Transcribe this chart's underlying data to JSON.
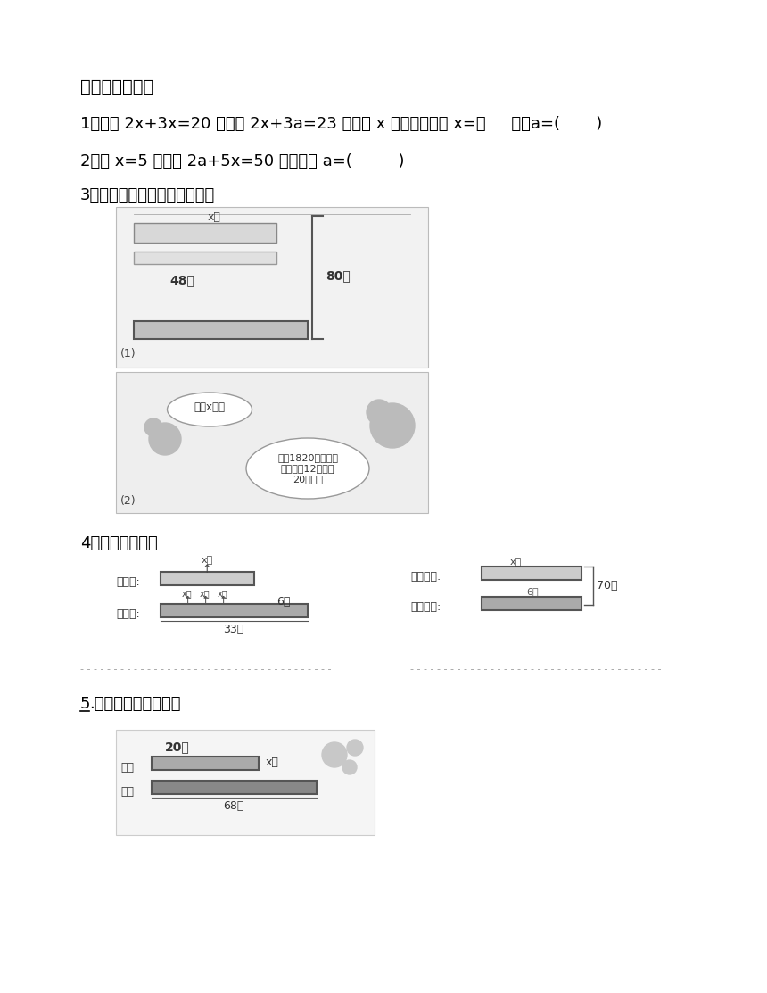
{
  "title": "考点四：解方程",
  "q1": "1、方程 2x+3x=20 与方程 2x+3a=23 求得的 x 的值相等。则 x=（     ）；a=(       )",
  "q2": "2、若 x=5 是方程 2a+5x=50 的解，则 a=(         )",
  "q3": "3、列方程，并求出方程的解。",
  "q4": "4、看图列方程。",
  "q5_num": "5",
  "q5_rest": ".看图列方程并解答。",
  "bg_color": "#ffffff",
  "text_color": "#000000",
  "font_size": 13
}
